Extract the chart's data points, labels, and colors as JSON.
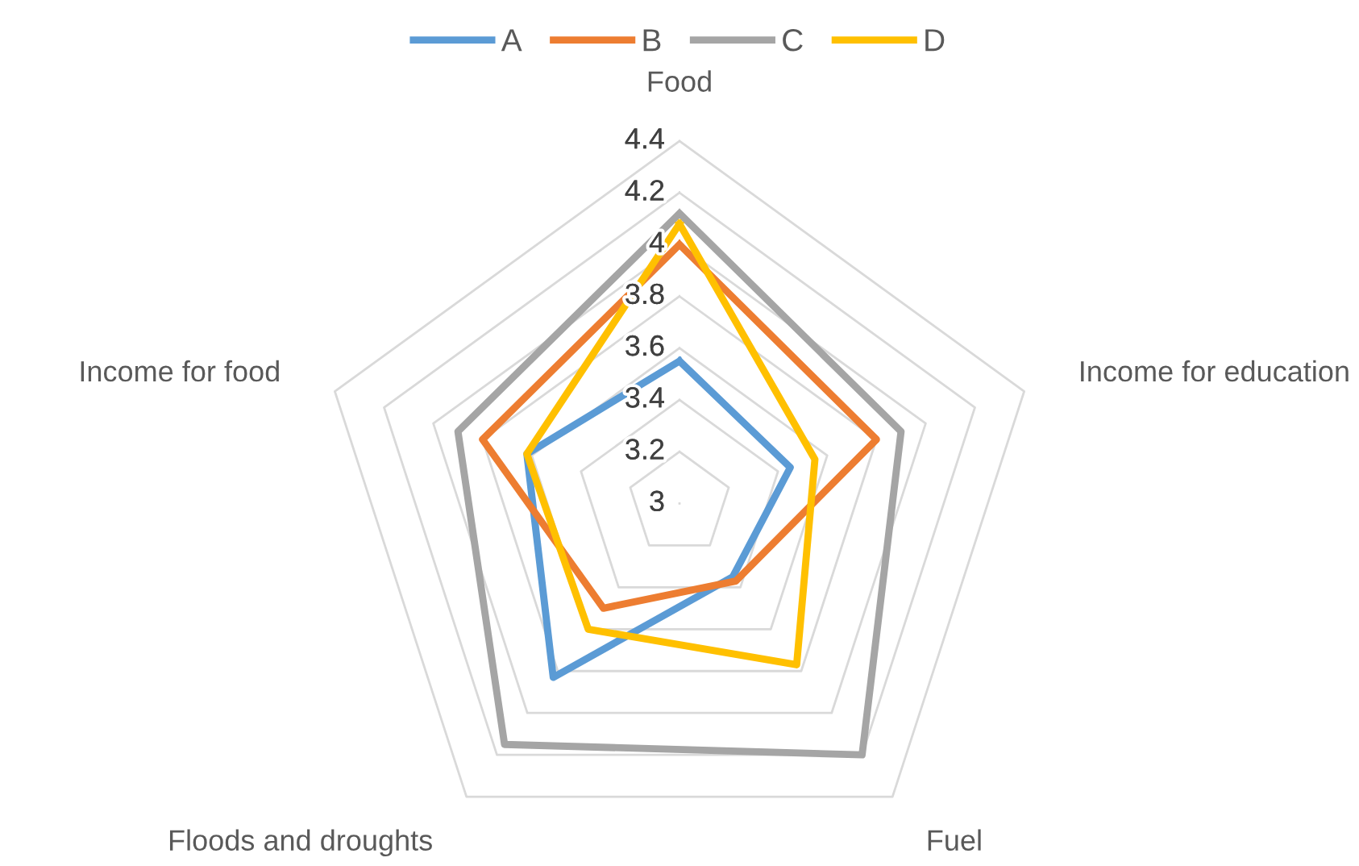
{
  "chart_data": {
    "type": "radar",
    "categories": [
      "Food",
      "Income for education",
      "Fuel",
      "Floods and droughts",
      "Income for food"
    ],
    "series": [
      {
        "name": "A",
        "color": "#5b9bd5",
        "values": [
          3.55,
          3.45,
          3.35,
          3.83,
          3.62
        ]
      },
      {
        "name": "B",
        "color": "#ed7d31",
        "values": [
          4.0,
          3.8,
          3.37,
          3.5,
          3.8
        ]
      },
      {
        "name": "C",
        "color": "#a5a5a5",
        "values": [
          4.12,
          3.9,
          4.2,
          4.15,
          3.9
        ]
      },
      {
        "name": "D",
        "color": "#ffc000",
        "values": [
          4.08,
          3.55,
          3.77,
          3.6,
          3.62
        ]
      }
    ],
    "ylim": [
      3,
      4.4
    ],
    "yticks": [
      3,
      3.2,
      3.4,
      3.6,
      3.8,
      4,
      4.2,
      4.4
    ],
    "grid": true,
    "legend": "top",
    "marker": "none",
    "line_style": "solid"
  }
}
